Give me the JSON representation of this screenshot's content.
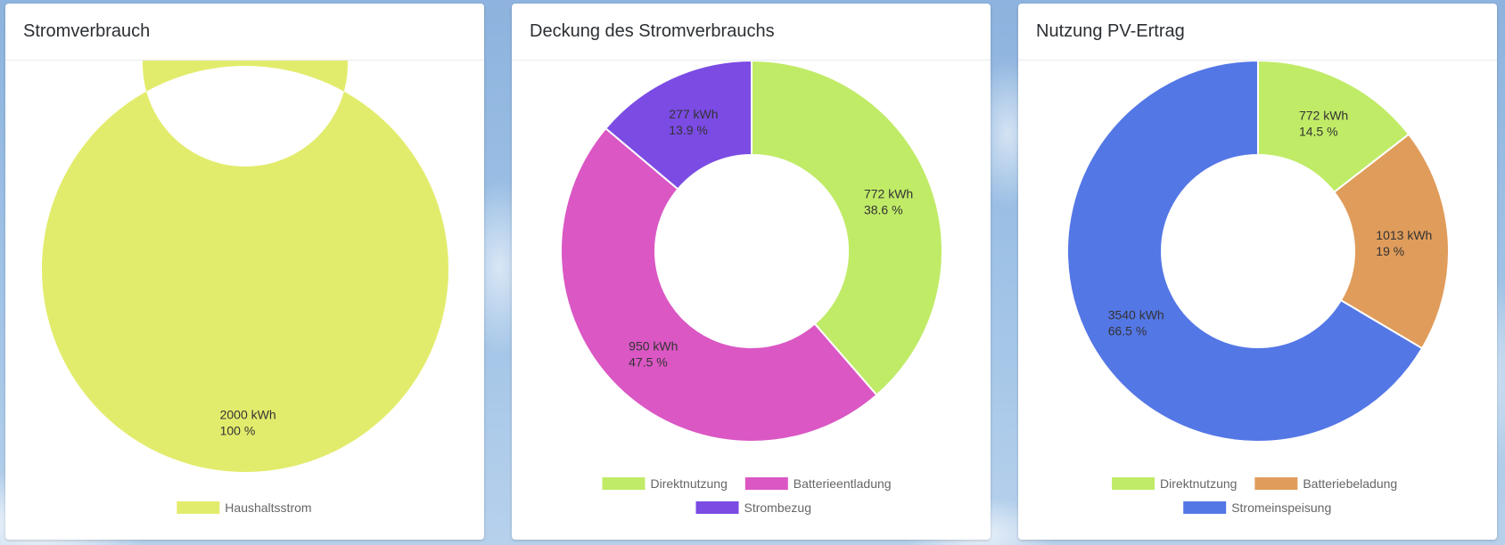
{
  "colors": {
    "haushaltsstrom": "#e2ec6c",
    "direktnutzung": "#c0eb67",
    "batterieentladung": "#da57c4",
    "strombezug": "#7b4be3",
    "batteriebeladung": "#e09c5b",
    "stromeinspeisung": "#5477e6"
  },
  "chart_data": [
    {
      "type": "pie",
      "title": "Stromverbrauch",
      "series": [
        {
          "name": "Haushaltsstrom",
          "value": 2000,
          "label_value": "2000 kWh",
          "label_percent": "100 %",
          "color": "#e2ec6c"
        }
      ],
      "legend": [
        "Haushaltsstrom"
      ]
    },
    {
      "type": "pie",
      "title": "Deckung des Stromverbrauchs",
      "series": [
        {
          "name": "Direktnutzung",
          "value": 772,
          "label_value": "772 kWh",
          "label_percent": "38.6 %",
          "color": "#c0eb67"
        },
        {
          "name": "Batterieentladung",
          "value": 950,
          "label_value": "950 kWh",
          "label_percent": "47.5 %",
          "color": "#da57c4"
        },
        {
          "name": "Strombezug",
          "value": 277,
          "label_value": "277 kWh",
          "label_percent": "13.9 %",
          "color": "#7b4be3"
        }
      ],
      "legend": [
        "Direktnutzung",
        "Batterieentladung",
        "Strombezug"
      ]
    },
    {
      "type": "pie",
      "title": "Nutzung PV-Ertrag",
      "series": [
        {
          "name": "Direktnutzung",
          "value": 772,
          "label_value": "772 kWh",
          "label_percent": "14.5 %",
          "color": "#c0eb67"
        },
        {
          "name": "Batteriebeladung",
          "value": 1013,
          "label_value": "1013 kWh",
          "label_percent": "19 %",
          "color": "#e09c5b"
        },
        {
          "name": "Stromeinspeisung",
          "value": 3540,
          "label_value": "3540 kWh",
          "label_percent": "66.5 %",
          "color": "#5477e6"
        }
      ],
      "legend": [
        "Direktnutzung",
        "Batteriebeladung",
        "Stromeinspeisung"
      ]
    }
  ]
}
